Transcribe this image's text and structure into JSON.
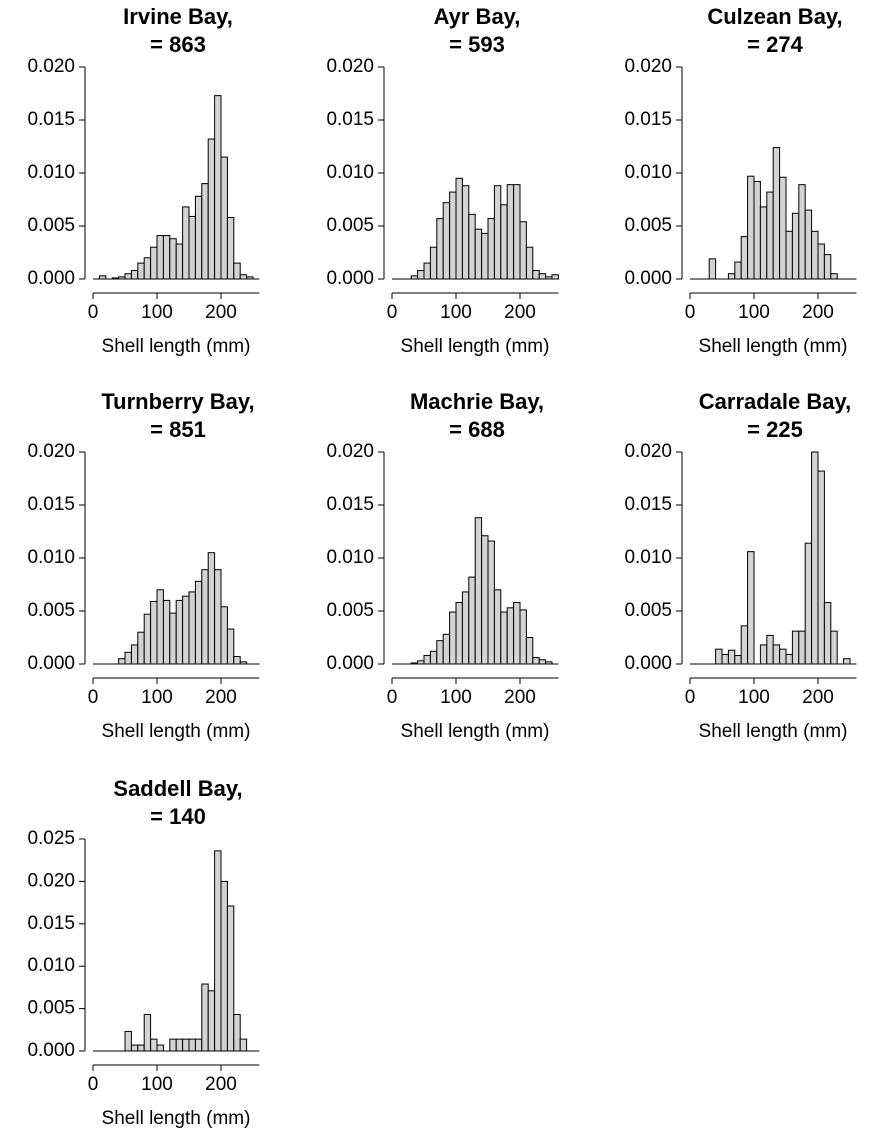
{
  "chart_data": [
    {
      "type": "histogram",
      "title": "Irvine Bay,",
      "subtitle": "= 863",
      "x_label": "Shell length (mm)",
      "color": "#d3d3d3",
      "bins": [
        0,
        10,
        20,
        30,
        40,
        50,
        60,
        70,
        80,
        90,
        100,
        110,
        120,
        130,
        140,
        150,
        160,
        170,
        180,
        190,
        200,
        210,
        220,
        230,
        240,
        250,
        260
      ],
      "values": [
        0,
        0.0003,
        0,
        0.0001,
        0.0002,
        0.0005,
        0.0008,
        0.0015,
        0.002,
        0.003,
        0.0041,
        0.0041,
        0.0038,
        0.0033,
        0.0068,
        0.0059,
        0.0078,
        0.009,
        0.0132,
        0.0173,
        0.0115,
        0.0058,
        0.0015,
        0.0004,
        0.0002,
        0
      ],
      "xlim": [
        0,
        260
      ],
      "xticks": [
        0,
        100,
        200
      ],
      "ylim": [
        0,
        0.02
      ],
      "yticks": [
        {
          "value": 0,
          "label": "0.000"
        },
        {
          "value": 0.005,
          "label": "0.005"
        },
        {
          "value": 0.01,
          "label": "0.010"
        },
        {
          "value": 0.015,
          "label": "0.015"
        },
        {
          "value": 0.02,
          "label": "0.020"
        }
      ]
    },
    {
      "type": "histogram",
      "title": "Ayr Bay,",
      "subtitle": "= 593",
      "x_label": "Shell length (mm)",
      "color": "#d3d3d3",
      "bins": [
        0,
        10,
        20,
        30,
        40,
        50,
        60,
        70,
        80,
        90,
        100,
        110,
        120,
        130,
        140,
        150,
        160,
        170,
        180,
        190,
        200,
        210,
        220,
        230,
        240,
        250,
        260
      ],
      "values": [
        0,
        0,
        0,
        0.0003,
        0.0008,
        0.0015,
        0.003,
        0.0057,
        0.0072,
        0.0082,
        0.0095,
        0.0088,
        0.0061,
        0.0047,
        0.0043,
        0.0057,
        0.0088,
        0.007,
        0.0089,
        0.0089,
        0.0054,
        0.003,
        0.0008,
        0.0005,
        0.0002,
        0.0004
      ],
      "xlim": [
        0,
        260
      ],
      "xticks": [
        0,
        100,
        200
      ],
      "ylim": [
        0,
        0.02
      ],
      "yticks": [
        {
          "value": 0,
          "label": "0.000"
        },
        {
          "value": 0.005,
          "label": "0.005"
        },
        {
          "value": 0.01,
          "label": "0.010"
        },
        {
          "value": 0.015,
          "label": "0.015"
        },
        {
          "value": 0.02,
          "label": "0.020"
        }
      ]
    },
    {
      "type": "histogram",
      "title": "Culzean Bay,",
      "subtitle": "= 274",
      "x_label": "Shell length (mm)",
      "color": "#d3d3d3",
      "bins": [
        0,
        10,
        20,
        30,
        40,
        50,
        60,
        70,
        80,
        90,
        100,
        110,
        120,
        130,
        140,
        150,
        160,
        170,
        180,
        190,
        200,
        210,
        220,
        230,
        240,
        250,
        260
      ],
      "values": [
        0,
        0,
        0,
        0.0019,
        0,
        0,
        0.0005,
        0.0016,
        0.004,
        0.0097,
        0.0092,
        0.0068,
        0.0082,
        0.0124,
        0.0096,
        0.0045,
        0.0062,
        0.0089,
        0.0065,
        0.0045,
        0.0033,
        0.0023,
        0.0005,
        0,
        0,
        0
      ],
      "xlim": [
        0,
        260
      ],
      "xticks": [
        0,
        100,
        200
      ],
      "ylim": [
        0,
        0.02
      ],
      "yticks": [
        {
          "value": 0,
          "label": "0.000"
        },
        {
          "value": 0.005,
          "label": "0.005"
        },
        {
          "value": 0.01,
          "label": "0.010"
        },
        {
          "value": 0.015,
          "label": "0.015"
        },
        {
          "value": 0.02,
          "label": "0.020"
        }
      ]
    },
    {
      "type": "histogram",
      "title": "Turnberry Bay,",
      "subtitle": "= 851",
      "x_label": "Shell length (mm)",
      "color": "#d3d3d3",
      "bins": [
        0,
        10,
        20,
        30,
        40,
        50,
        60,
        70,
        80,
        90,
        100,
        110,
        120,
        130,
        140,
        150,
        160,
        170,
        180,
        190,
        200,
        210,
        220,
        230,
        240,
        250,
        260
      ],
      "values": [
        0,
        0,
        0,
        0,
        0.0005,
        0.0011,
        0.0018,
        0.003,
        0.0047,
        0.0059,
        0.007,
        0.006,
        0.0048,
        0.006,
        0.0064,
        0.0068,
        0.0078,
        0.0089,
        0.0105,
        0.0089,
        0.0054,
        0.0033,
        0.0007,
        0.0002,
        0,
        0
      ],
      "xlim": [
        0,
        260
      ],
      "xticks": [
        0,
        100,
        200
      ],
      "ylim": [
        0,
        0.02
      ],
      "yticks": [
        {
          "value": 0,
          "label": "0.000"
        },
        {
          "value": 0.005,
          "label": "0.005"
        },
        {
          "value": 0.01,
          "label": "0.010"
        },
        {
          "value": 0.015,
          "label": "0.015"
        },
        {
          "value": 0.02,
          "label": "0.020"
        }
      ]
    },
    {
      "type": "histogram",
      "title": "Machrie Bay,",
      "subtitle": "= 688",
      "x_label": "Shell length (mm)",
      "color": "#d3d3d3",
      "bins": [
        0,
        10,
        20,
        30,
        40,
        50,
        60,
        70,
        80,
        90,
        100,
        110,
        120,
        130,
        140,
        150,
        160,
        170,
        180,
        190,
        200,
        210,
        220,
        230,
        240,
        250,
        260
      ],
      "values": [
        0,
        0,
        0,
        0.0001,
        0.0003,
        0.0008,
        0.0012,
        0.0022,
        0.0028,
        0.0049,
        0.0058,
        0.0068,
        0.0082,
        0.0138,
        0.0121,
        0.0116,
        0.007,
        0.0049,
        0.0053,
        0.0058,
        0.0051,
        0.0025,
        0.0006,
        0.0004,
        0.0002,
        0
      ],
      "xlim": [
        0,
        260
      ],
      "xticks": [
        0,
        100,
        200
      ],
      "ylim": [
        0,
        0.02
      ],
      "yticks": [
        {
          "value": 0,
          "label": "0.000"
        },
        {
          "value": 0.005,
          "label": "0.005"
        },
        {
          "value": 0.01,
          "label": "0.010"
        },
        {
          "value": 0.015,
          "label": "0.015"
        },
        {
          "value": 0.02,
          "label": "0.020"
        }
      ]
    },
    {
      "type": "histogram",
      "title": "Carradale Bay,",
      "subtitle": "= 225",
      "x_label": "Shell length (mm)",
      "color": "#d3d3d3",
      "bins": [
        0,
        10,
        20,
        30,
        40,
        50,
        60,
        70,
        80,
        90,
        100,
        110,
        120,
        130,
        140,
        150,
        160,
        170,
        180,
        190,
        200,
        210,
        220,
        230,
        240,
        250,
        260
      ],
      "values": [
        0,
        0,
        0,
        0,
        0.0014,
        0.0009,
        0.0013,
        0.0008,
        0.0036,
        0.0106,
        0,
        0.0018,
        0.0027,
        0.0018,
        0.0014,
        0.0009,
        0.0031,
        0.0031,
        0.0114,
        0.02,
        0.0182,
        0.0058,
        0.0031,
        0,
        0.0005,
        0
      ],
      "xlim": [
        0,
        260
      ],
      "xticks": [
        0,
        100,
        200
      ],
      "ylim": [
        0,
        0.02
      ],
      "yticks": [
        {
          "value": 0,
          "label": "0.000"
        },
        {
          "value": 0.005,
          "label": "0.005"
        },
        {
          "value": 0.01,
          "label": "0.010"
        },
        {
          "value": 0.015,
          "label": "0.015"
        },
        {
          "value": 0.02,
          "label": "0.020"
        }
      ]
    },
    {
      "type": "histogram",
      "title": "Saddell Bay,",
      "subtitle": "= 140",
      "x_label": "Shell length (mm)",
      "color": "#d3d3d3",
      "bins": [
        0,
        10,
        20,
        30,
        40,
        50,
        60,
        70,
        80,
        90,
        100,
        110,
        120,
        130,
        140,
        150,
        160,
        170,
        180,
        190,
        200,
        210,
        220,
        230,
        240,
        250,
        260
      ],
      "values": [
        0,
        0,
        0,
        0,
        0,
        0.0023,
        0.0007,
        0.0007,
        0.0043,
        0.0014,
        0.0007,
        0,
        0.0014,
        0.0014,
        0.0014,
        0.0014,
        0.0014,
        0.0079,
        0.0071,
        0.0236,
        0.02,
        0.0171,
        0.0043,
        0.0014,
        0,
        0
      ],
      "xlim": [
        0,
        260
      ],
      "xticks": [
        0,
        100,
        200
      ],
      "ylim": [
        0,
        0.025
      ],
      "yticks": [
        {
          "value": 0,
          "label": "0.000"
        },
        {
          "value": 0.005,
          "label": "0.005"
        },
        {
          "value": 0.01,
          "label": "0.010"
        },
        {
          "value": 0.015,
          "label": "0.015"
        },
        {
          "value": 0.02,
          "label": "0.020"
        },
        {
          "value": 0.025,
          "label": "0.025"
        }
      ]
    }
  ]
}
